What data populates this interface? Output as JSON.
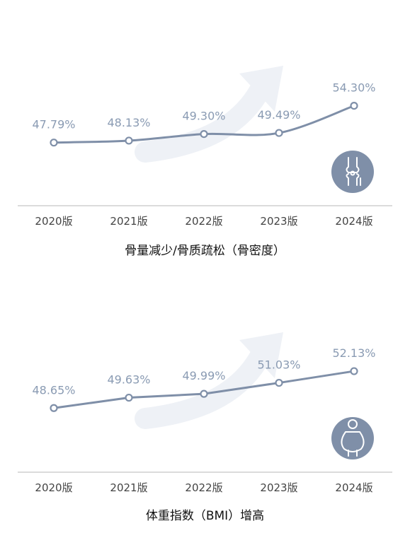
{
  "colors": {
    "line": "#7f8fa8",
    "marker_fill": "#ffffff",
    "value_label": "#8a9bb3",
    "arrow": "#eef1f6",
    "icon_bg": "#7f8fa8",
    "axis": "#cfcfcf"
  },
  "chart_data": [
    {
      "type": "line",
      "title": "骨量减少/骨质疏松（骨密度）",
      "categories": [
        "2020版",
        "2021版",
        "2022版",
        "2023版",
        "2024版"
      ],
      "values": [
        47.79,
        48.13,
        49.3,
        49.49,
        54.3
      ],
      "value_labels": [
        "47.79%",
        "48.13%",
        "49.30%",
        "49.49%",
        "54.30%"
      ],
      "smooth": true,
      "icon": "knee-joint-icon",
      "ylim": [
        43,
        58
      ]
    },
    {
      "type": "line",
      "title": "体重指数（BMI）增高",
      "categories": [
        "2020版",
        "2021版",
        "2022版",
        "2023版",
        "2024版"
      ],
      "values": [
        48.65,
        49.63,
        49.99,
        51.03,
        52.13
      ],
      "value_labels": [
        "48.65%",
        "49.63%",
        "49.99%",
        "51.03%",
        "52.13%"
      ],
      "smooth": false,
      "icon": "overweight-person-icon",
      "ylim": [
        46,
        54
      ]
    }
  ]
}
